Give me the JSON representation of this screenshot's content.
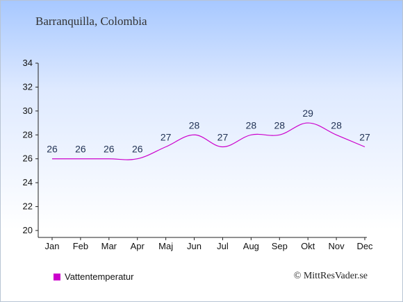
{
  "chart_data": {
    "type": "line",
    "title": "Barranquilla, Colombia",
    "categories": [
      "Jan",
      "Feb",
      "Mar",
      "Apr",
      "Maj",
      "Jun",
      "Jul",
      "Aug",
      "Sep",
      "Okt",
      "Nov",
      "Dec"
    ],
    "series": [
      {
        "name": "Vattentemperatur",
        "values": [
          26,
          26,
          26,
          26,
          27,
          28,
          27,
          28,
          28,
          29,
          28,
          27
        ],
        "color": "#cc00cc"
      }
    ],
    "ylim": [
      20,
      34
    ],
    "yticks": [
      20,
      22,
      24,
      26,
      28,
      30,
      32,
      34
    ],
    "grid": false,
    "legend_position": "bottom-left"
  },
  "copyright": "© MittResVader.se"
}
